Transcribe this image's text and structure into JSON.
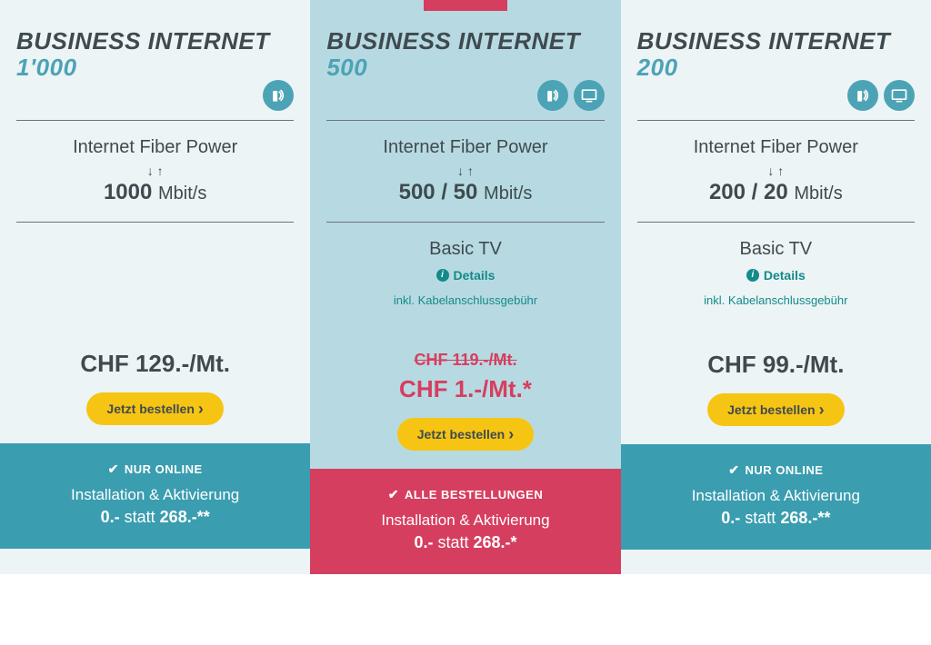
{
  "colors": {
    "teal": "#4ca3b5",
    "tealDark": "#3a9db0",
    "red": "#d63e5f",
    "yellow": "#f6c514",
    "highlightBg": "#b7dae2",
    "normalBg": "#ecf4f6",
    "textDark": "#3f4a4f",
    "accentGreen": "#148a8a"
  },
  "plans": [
    {
      "title": "BUSINESS INTERNET",
      "subtitle": "1'000",
      "icons": [
        "router"
      ],
      "fiber": "Internet Fiber Power",
      "speedBold": "1000",
      "speedUnit": "Mbit/s",
      "tv": null,
      "details": null,
      "cableNote": null,
      "oldPrice": null,
      "price": "CHF 129.-/Mt.",
      "special": false,
      "orderLabel": "Jetzt bestellen",
      "footerBadge": "NUR ONLINE",
      "installLabel": "Installation & Aktivierung",
      "installPriceBold": "0.-",
      "installStatt": "statt",
      "installPriceStrike": "268.-**",
      "footerColor": "teal",
      "highlight": false,
      "topBadge": false
    },
    {
      "title": "BUSINESS INTERNET",
      "subtitle": "500",
      "icons": [
        "router",
        "tv"
      ],
      "fiber": "Internet Fiber Power",
      "speedBold": "500 / 50",
      "speedUnit": "Mbit/s",
      "tv": "Basic TV",
      "details": "Details",
      "cableNote": "inkl. Kabelanschlussgebühr",
      "oldPrice": "CHF 119.-/Mt.",
      "price": "CHF 1.-/Mt.*",
      "special": true,
      "orderLabel": "Jetzt bestellen",
      "footerBadge": "ALLE BESTELLUNGEN",
      "installLabel": "Installation & Aktivierung",
      "installPriceBold": "0.-",
      "installStatt": "statt",
      "installPriceStrike": "268.-*",
      "footerColor": "red",
      "highlight": true,
      "topBadge": true
    },
    {
      "title": "BUSINESS INTERNET",
      "subtitle": "200",
      "icons": [
        "router",
        "tv"
      ],
      "fiber": "Internet Fiber Power",
      "speedBold": "200 / 20",
      "speedUnit": "Mbit/s",
      "tv": "Basic TV",
      "details": "Details",
      "cableNote": "inkl. Kabelanschlussgebühr",
      "oldPrice": null,
      "price": "CHF 99.-/Mt.",
      "special": false,
      "orderLabel": "Jetzt bestellen",
      "footerBadge": "NUR ONLINE",
      "installLabel": "Installation & Aktivierung",
      "installPriceBold": "0.-",
      "installStatt": "statt",
      "installPriceStrike": "268.-**",
      "footerColor": "teal",
      "highlight": false,
      "topBadge": false
    }
  ]
}
